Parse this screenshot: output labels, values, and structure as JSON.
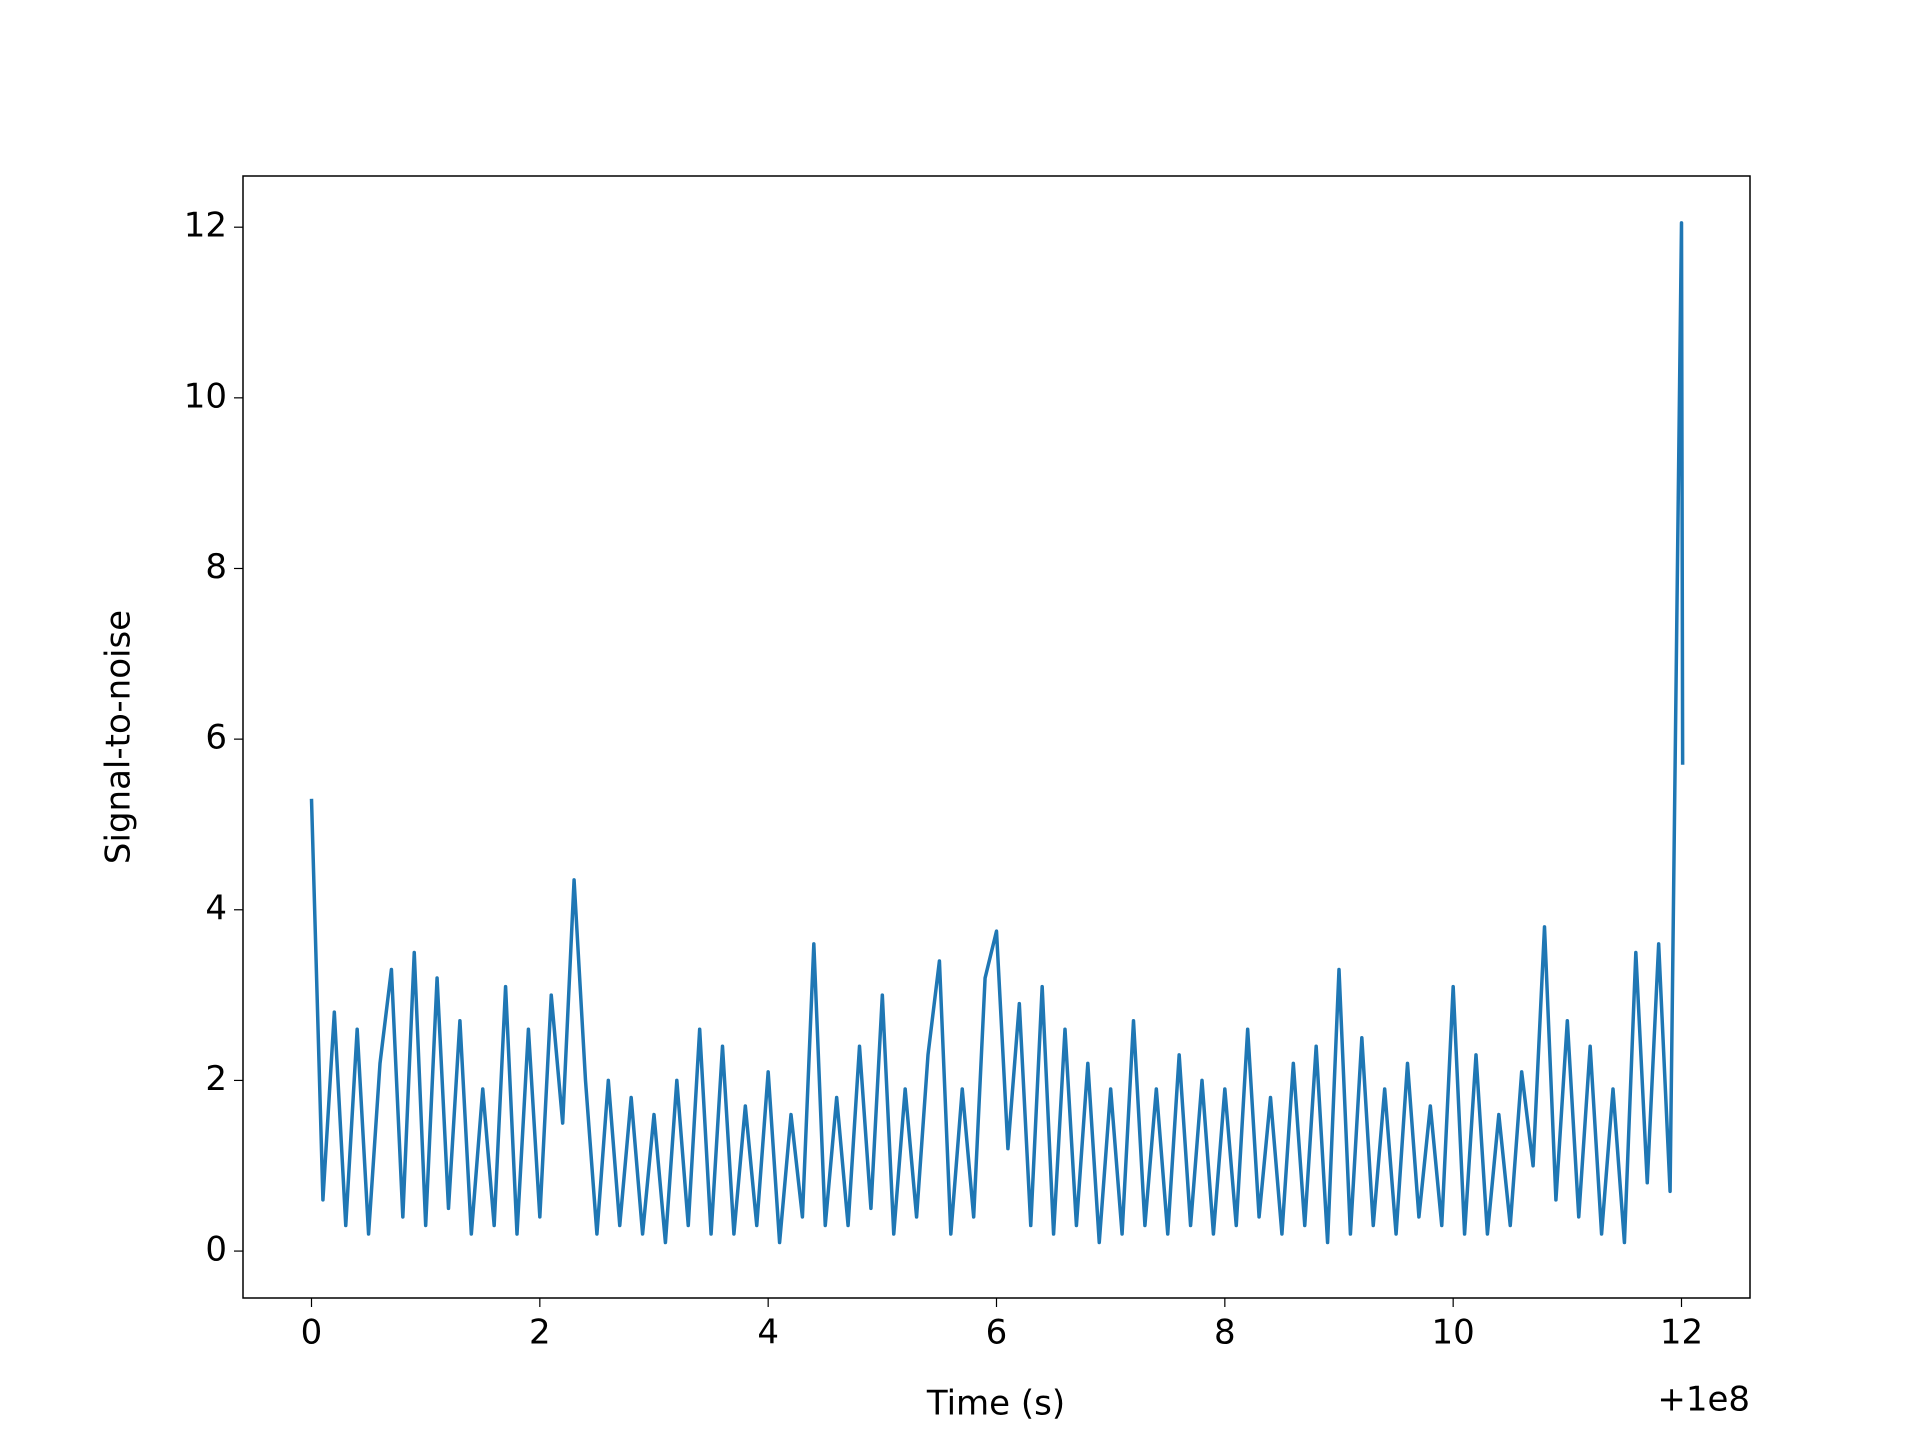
{
  "chart_data": {
    "type": "line",
    "x_label": "Time (s)",
    "y_label": "Signal-to-noise",
    "x_offset_label": "+1e8",
    "x": [
      0.0,
      0.1,
      0.2,
      0.3,
      0.4,
      0.5,
      0.6,
      0.7,
      0.8,
      0.9,
      1.0,
      1.1,
      1.2,
      1.3,
      1.4,
      1.5,
      1.6,
      1.7,
      1.8,
      1.9,
      2.0,
      2.1,
      2.2,
      2.3,
      2.4,
      2.5,
      2.6,
      2.7,
      2.8,
      2.9,
      3.0,
      3.1,
      3.2,
      3.3,
      3.4,
      3.5,
      3.6,
      3.7,
      3.8,
      3.9,
      4.0,
      4.1,
      4.2,
      4.3,
      4.4,
      4.5,
      4.6,
      4.7,
      4.8,
      4.9,
      5.0,
      5.1,
      5.2,
      5.3,
      5.4,
      5.5,
      5.6,
      5.7,
      5.8,
      5.9,
      6.0,
      6.1,
      6.2,
      6.3,
      6.4,
      6.5,
      6.6,
      6.7,
      6.8,
      6.9,
      7.0,
      7.1,
      7.2,
      7.3,
      7.4,
      7.5,
      7.6,
      7.7,
      7.8,
      7.9,
      8.0,
      8.1,
      8.2,
      8.3,
      8.4,
      8.5,
      8.6,
      8.7,
      8.8,
      8.9,
      9.0,
      9.1,
      9.2,
      9.3,
      9.4,
      9.5,
      9.6,
      9.7,
      9.8,
      9.9,
      10.0,
      10.1,
      10.2,
      10.3,
      10.4,
      10.5,
      10.6,
      10.7,
      10.8,
      10.9,
      11.0,
      11.1,
      11.2,
      11.3,
      11.4,
      11.5,
      11.6,
      11.7,
      11.8,
      11.9,
      12.0,
      12.01
    ],
    "series": [
      {
        "name": "snr",
        "color": "#1f77b4",
        "values": [
          5.3,
          0.6,
          2.8,
          0.3,
          2.6,
          0.2,
          2.2,
          3.3,
          0.4,
          3.5,
          0.3,
          3.2,
          0.5,
          2.7,
          0.2,
          1.9,
          0.3,
          3.1,
          0.2,
          2.6,
          0.4,
          3.0,
          1.5,
          4.35,
          2.0,
          0.2,
          2.0,
          0.3,
          1.8,
          0.2,
          1.6,
          0.1,
          2.0,
          0.3,
          2.6,
          0.2,
          2.4,
          0.2,
          1.7,
          0.3,
          2.1,
          0.1,
          1.6,
          0.4,
          3.6,
          0.3,
          1.8,
          0.3,
          2.4,
          0.5,
          3.0,
          0.2,
          1.9,
          0.4,
          2.3,
          3.4,
          0.2,
          1.9,
          0.4,
          3.2,
          3.75,
          1.2,
          2.9,
          0.3,
          3.1,
          0.2,
          2.6,
          0.3,
          2.2,
          0.1,
          1.9,
          0.2,
          2.7,
          0.3,
          1.9,
          0.2,
          2.3,
          0.3,
          2.0,
          0.2,
          1.9,
          0.3,
          2.6,
          0.4,
          1.8,
          0.2,
          2.2,
          0.3,
          2.4,
          0.1,
          3.3,
          0.2,
          2.5,
          0.3,
          1.9,
          0.2,
          2.2,
          0.4,
          1.7,
          0.3,
          3.1,
          0.2,
          2.3,
          0.2,
          1.6,
          0.3,
          2.1,
          1.0,
          3.8,
          0.6,
          2.7,
          0.4,
          2.4,
          0.2,
          1.9,
          0.1,
          3.5,
          0.8,
          3.6,
          0.7,
          12.05,
          5.7
        ]
      }
    ],
    "xlim": [
      -0.6,
      12.6
    ],
    "ylim": [
      -0.55,
      12.6
    ],
    "xticks": [
      0,
      2,
      4,
      6,
      8,
      10,
      12
    ],
    "yticks": [
      0,
      2,
      4,
      6,
      8,
      10,
      12
    ],
    "grid": false
  }
}
